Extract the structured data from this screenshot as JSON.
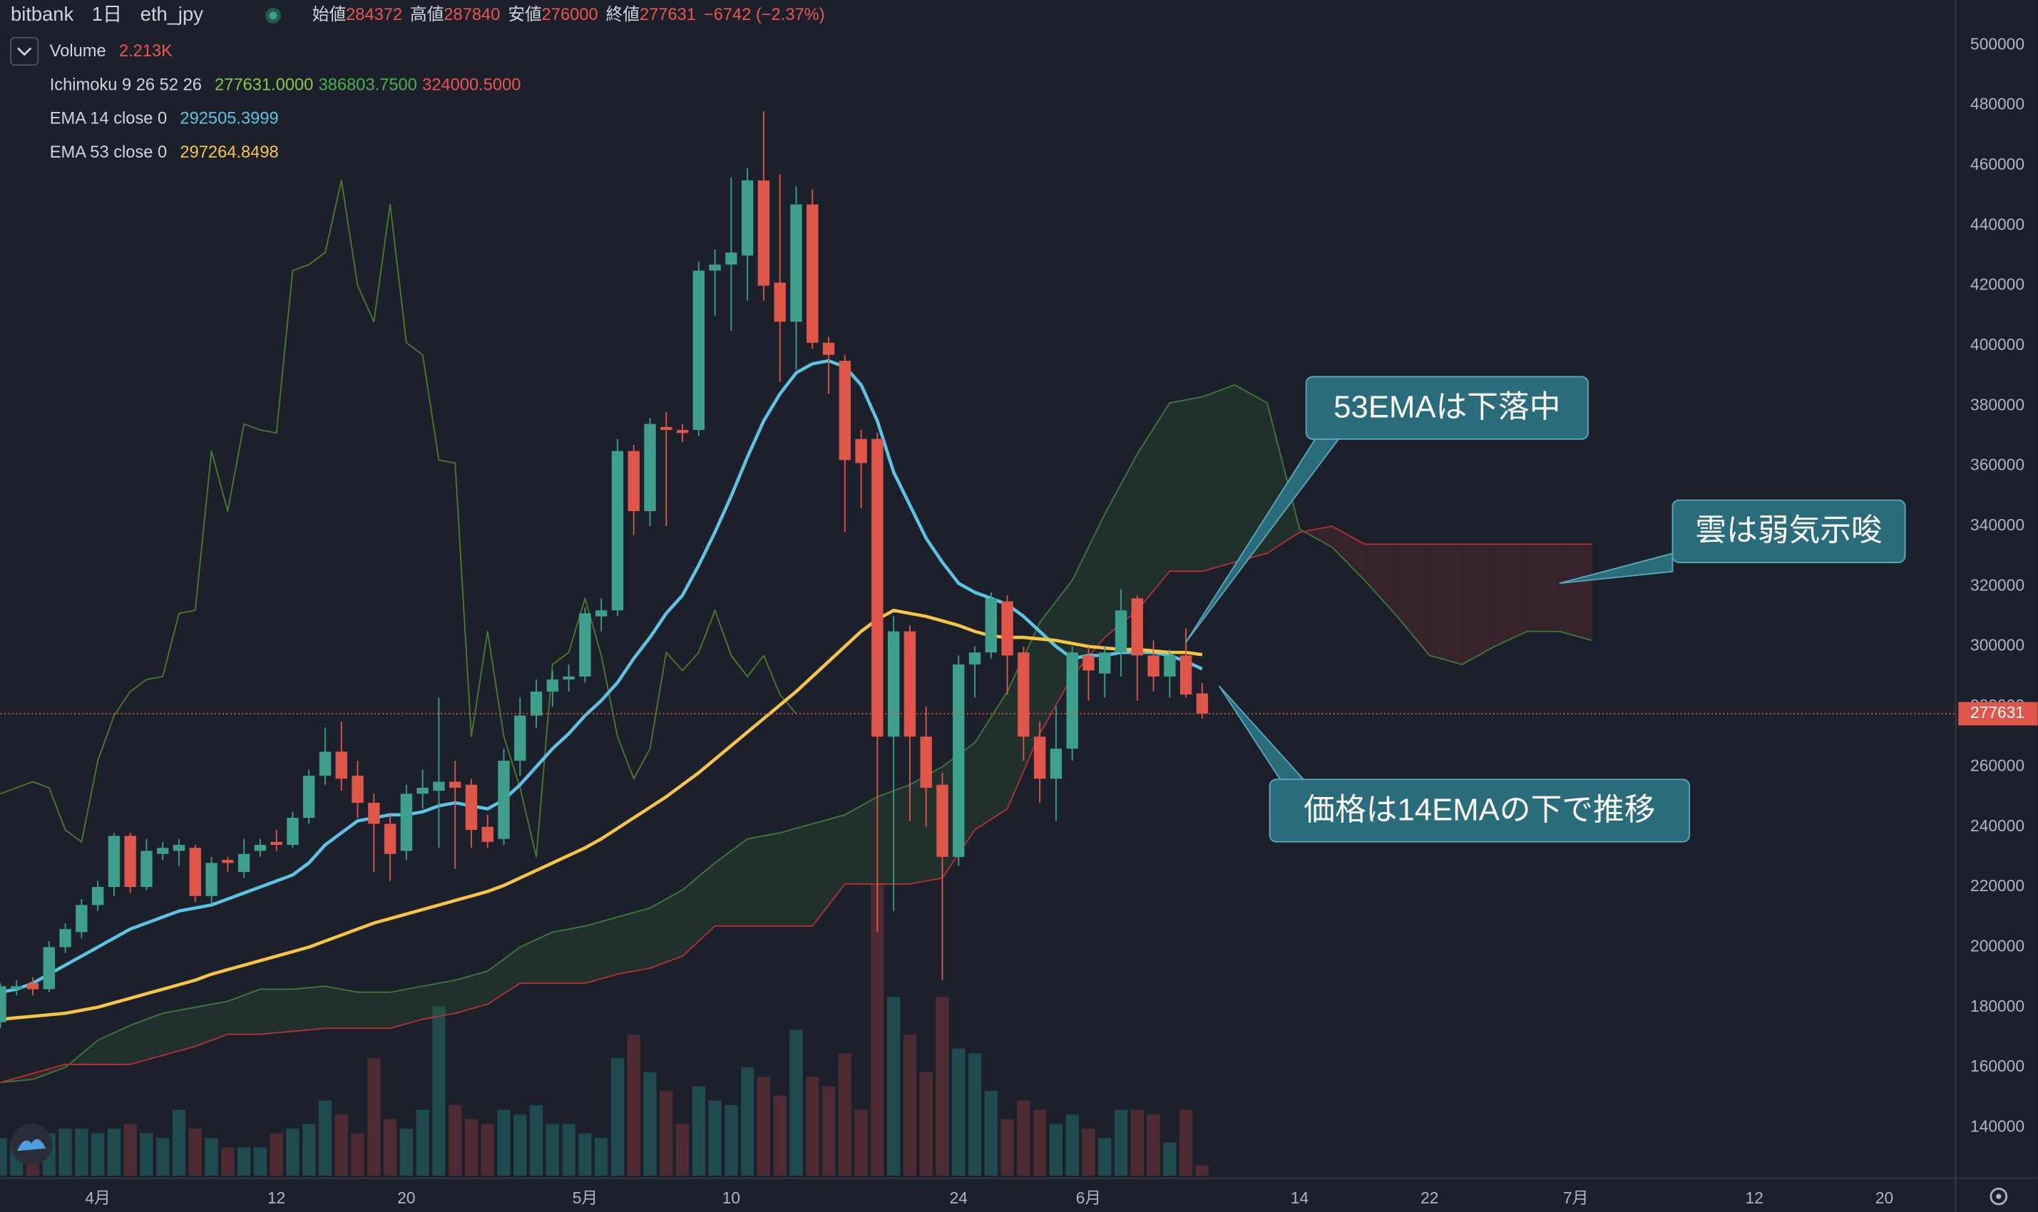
{
  "header": {
    "exchange": "bitbank",
    "interval": "1日",
    "symbol": "eth_jpy",
    "open_label": "始値",
    "high_label": "高値",
    "low_label": "安値",
    "close_label": "終値",
    "change": "−6742 (−2.37%)"
  },
  "annotations": [
    {
      "text": "53EMAは下落中"
    },
    {
      "text": "雲は弱気示唆"
    },
    {
      "text": "価格は14EMAの下で推移"
    }
  ],
  "chart_data": {
    "type": "candlestick",
    "x": [
      -6,
      -5,
      -4,
      -3,
      -2,
      -1,
      0,
      1,
      2,
      3,
      4,
      5,
      6,
      7,
      8,
      9,
      10,
      11,
      12,
      13,
      14,
      15,
      16,
      17,
      18,
      19,
      20,
      21,
      22,
      23,
      24,
      25,
      26,
      27,
      28,
      29,
      30,
      31,
      32,
      33,
      34,
      35,
      36,
      37,
      38,
      39,
      40,
      41,
      42,
      43,
      44,
      45,
      46,
      47,
      48,
      49,
      50,
      51,
      52,
      53,
      54,
      55,
      56,
      57,
      58,
      59,
      60,
      61,
      62,
      63,
      64,
      65,
      66,
      67,
      68
    ],
    "open": [
      175000,
      186000,
      188000,
      186000,
      200000,
      205000,
      214000,
      220000,
      237000,
      220000,
      231000,
      232000,
      233000,
      217000,
      229000,
      225000,
      232000,
      235000,
      234000,
      243000,
      257000,
      265000,
      257000,
      248000,
      241000,
      232000,
      251000,
      252000,
      255000,
      254000,
      240000,
      236000,
      262000,
      277000,
      285000,
      289000,
      290000,
      310000,
      312000,
      365000,
      345000,
      373000,
      372000,
      372000,
      425000,
      427000,
      430000,
      455000,
      421000,
      408000,
      447000,
      401000,
      395000,
      369000,
      369000,
      270000,
      305000,
      270000,
      254000,
      230000,
      294000,
      298000,
      315000,
      298000,
      270000,
      256000,
      266000,
      297000,
      291000,
      298000,
      316000,
      297000,
      290000,
      297000,
      284372
    ],
    "high": [
      188000,
      189000,
      190000,
      202000,
      208000,
      216000,
      222000,
      238000,
      238000,
      236000,
      235000,
      236000,
      234000,
      230000,
      230000,
      236000,
      236000,
      239000,
      245000,
      259000,
      273000,
      275000,
      262000,
      251000,
      244000,
      254000,
      259000,
      283000,
      262000,
      256000,
      244000,
      266000,
      283000,
      289000,
      292000,
      294000,
      313000,
      316000,
      369000,
      367000,
      376000,
      378000,
      374000,
      428000,
      432000,
      456000,
      459000,
      478000,
      457000,
      453000,
      452000,
      403000,
      397000,
      372000,
      371000,
      310000,
      307000,
      280000,
      258000,
      297000,
      300000,
      318000,
      317000,
      300000,
      275000,
      280000,
      300000,
      300000,
      300000,
      319000,
      317000,
      302000,
      299000,
      306000,
      287840
    ],
    "low": [
      173000,
      184000,
      184000,
      185000,
      198000,
      203000,
      212000,
      217000,
      218000,
      219000,
      229000,
      227000,
      215000,
      214000,
      225000,
      223000,
      230000,
      232000,
      233000,
      241000,
      254000,
      252000,
      243000,
      225000,
      222000,
      229000,
      246000,
      233000,
      226000,
      233000,
      233000,
      234000,
      257000,
      273000,
      280000,
      285000,
      288000,
      305000,
      310000,
      337000,
      340000,
      340000,
      368000,
      370000,
      410000,
      405000,
      415000,
      415000,
      388000,
      392000,
      399000,
      384000,
      338000,
      346000,
      205000,
      212000,
      242000,
      240000,
      189000,
      227000,
      283000,
      296000,
      284000,
      262000,
      248000,
      242000,
      262000,
      282000,
      283000,
      290000,
      282000,
      285000,
      283000,
      283000,
      276000
    ],
    "close": [
      187000,
      187000,
      186000,
      200000,
      206000,
      214000,
      220000,
      237000,
      220000,
      232000,
      233000,
      234000,
      217000,
      228000,
      228000,
      231000,
      234000,
      234000,
      243000,
      257000,
      265000,
      256000,
      248000,
      241000,
      231000,
      251000,
      253000,
      255000,
      253000,
      239000,
      235000,
      262000,
      277000,
      285000,
      289000,
      290000,
      311000,
      312000,
      365000,
      345000,
      374000,
      372000,
      371000,
      425000,
      427000,
      431000,
      455000,
      420000,
      408000,
      447000,
      401000,
      397000,
      362000,
      361000,
      270000,
      305000,
      270000,
      253000,
      230000,
      294000,
      298000,
      316000,
      297000,
      270000,
      256000,
      266000,
      298000,
      292000,
      298000,
      312000,
      297000,
      290000,
      297000,
      284000,
      277631
    ],
    "up_color": "#3d9f8c",
    "down_color": "#e0564b",
    "xlim": [
      -6,
      114.4
    ],
    "xticks": [
      {
        "value": 0,
        "label": "4月"
      },
      {
        "value": 11,
        "label": "12"
      },
      {
        "value": 19,
        "label": "20"
      },
      {
        "value": 30,
        "label": "5月"
      },
      {
        "value": 39,
        "label": "10"
      },
      {
        "value": 53,
        "label": "24"
      },
      {
        "value": 61,
        "label": "6月"
      },
      {
        "value": 74,
        "label": "14"
      },
      {
        "value": 82,
        "label": "22"
      },
      {
        "value": 91,
        "label": "7月"
      },
      {
        "value": 102,
        "label": "12"
      },
      {
        "value": 110,
        "label": "20"
      }
    ],
    "ylim": [
      124000,
      515000
    ],
    "yticks": [
      140000,
      160000,
      180000,
      200000,
      220000,
      240000,
      260000,
      280000,
      300000,
      320000,
      340000,
      360000,
      380000,
      400000,
      420000,
      440000,
      460000,
      480000,
      500000
    ],
    "grid": false,
    "volume": {
      "name": "Volume",
      "last_value_label": "2.213K",
      "ylim": [
        0,
        250000
      ],
      "up_color": "#1f4a50",
      "down_color": "#4e2a33",
      "values": [
        8000,
        7000,
        6000,
        9000,
        10000,
        10000,
        9000,
        10000,
        11000,
        9000,
        8000,
        14000,
        10000,
        8000,
        6000,
        6000,
        6000,
        9000,
        10000,
        11000,
        16000,
        13000,
        9000,
        25000,
        12000,
        10000,
        14000,
        36000,
        15000,
        12000,
        11000,
        14000,
        13000,
        15000,
        11000,
        11000,
        9000,
        8000,
        25000,
        30000,
        22000,
        18000,
        11000,
        19000,
        16000,
        15000,
        23000,
        21000,
        17000,
        31000,
        21000,
        19000,
        26000,
        14000,
        62000,
        38000,
        30000,
        22000,
        38000,
        27000,
        26000,
        18000,
        12000,
        16000,
        14000,
        11000,
        13000,
        10000,
        8000,
        14000,
        14000,
        13000,
        7000,
        14000,
        2213
      ]
    },
    "series": [
      {
        "name": "EMA 14 close 0",
        "color": "#5cc3e3",
        "values": [
          185000,
          186000,
          188000,
          191000,
          194000,
          197000,
          200000,
          203000,
          206000,
          208000,
          210000,
          212000,
          213000,
          214000,
          216000,
          218000,
          220000,
          222000,
          224000,
          228000,
          234000,
          238000,
          242000,
          243000,
          244000,
          244000,
          245000,
          247000,
          248000,
          247000,
          246000,
          249000,
          254000,
          260000,
          266000,
          271000,
          277000,
          282000,
          288000,
          296000,
          303000,
          311000,
          317000,
          327000,
          338000,
          350000,
          363000,
          375000,
          384000,
          391000,
          394000,
          395000,
          393000,
          387000,
          375000,
          358000,
          347000,
          336000,
          328000,
          321000,
          318000,
          316000,
          314000,
          310000,
          305000,
          300000,
          296000,
          297000,
          297000,
          298000,
          298000,
          298000,
          297000,
          295000,
          292505.3999
        ]
      },
      {
        "name": "EMA 53 close 0",
        "color": "#f6c544",
        "values": [
          176000,
          176500,
          177000,
          177500,
          178000,
          179000,
          180000,
          181500,
          183000,
          184500,
          186000,
          187500,
          189000,
          191000,
          192500,
          194000,
          195500,
          197000,
          198500,
          200000,
          202000,
          204000,
          206000,
          208000,
          209500,
          211000,
          212500,
          214000,
          215500,
          217000,
          218500,
          220500,
          223000,
          225500,
          228000,
          230500,
          233000,
          236000,
          239500,
          243000,
          246500,
          250000,
          254000,
          258000,
          262500,
          267000,
          271500,
          276000,
          280500,
          285000,
          290000,
          295000,
          300000,
          305000,
          309000,
          312000,
          311000,
          310000,
          308500,
          307000,
          305000,
          303500,
          303000,
          303000,
          302500,
          302000,
          301000,
          300000,
          299500,
          299000,
          299000,
          298500,
          298000,
          298000,
          297264.8498
        ]
      }
    ],
    "ichimoku": {
      "name": "Ichimoku 9 26 52 26",
      "legend_values": [
        "277631.0000",
        "386803.7500",
        "324000.5000"
      ],
      "x": [
        -6,
        -4,
        -2,
        0,
        2,
        4,
        6,
        8,
        10,
        12,
        14,
        16,
        18,
        20,
        22,
        24,
        26,
        28,
        30,
        32,
        34,
        36,
        38,
        40,
        42,
        44,
        46,
        48,
        50,
        52,
        54,
        56,
        58,
        60,
        62,
        64,
        66,
        68,
        70,
        72,
        74,
        76,
        78,
        80,
        82,
        84,
        86,
        88,
        90,
        92
      ],
      "span_a": {
        "color": "#3f7a3a",
        "values": [
          155000,
          156000,
          160000,
          169000,
          174000,
          178000,
          180000,
          182000,
          186000,
          186000,
          187000,
          185000,
          185000,
          187000,
          189000,
          192000,
          200000,
          205000,
          207000,
          210000,
          213000,
          219000,
          228000,
          236000,
          238000,
          241000,
          244000,
          250000,
          254000,
          260000,
          268000,
          285000,
          308000,
          322000,
          344000,
          364000,
          381000,
          383000,
          387000,
          381000,
          339000,
          333000,
          322000,
          310000,
          297000,
          294000,
          300000,
          305000,
          305000,
          302000
        ]
      },
      "span_b": {
        "color": "#b53232",
        "values": [
          155000,
          158000,
          161000,
          161000,
          161000,
          164000,
          167000,
          171000,
          171000,
          172000,
          173000,
          173000,
          173000,
          176000,
          178000,
          181000,
          188000,
          188000,
          188000,
          191000,
          193000,
          197000,
          207000,
          207000,
          207000,
          207000,
          221000,
          221000,
          221000,
          223000,
          239000,
          246000,
          271000,
          290000,
          303000,
          312000,
          325000,
          325000,
          328000,
          331000,
          338000,
          340000,
          334000,
          334000,
          334000,
          334000,
          334000,
          334000,
          334000,
          334000
        ]
      },
      "lagging": {
        "color": "#4d7a2c",
        "x": [
          -6,
          -5,
          -4,
          -3,
          -2,
          -1,
          0,
          1,
          2,
          3,
          4,
          5,
          6,
          7,
          8,
          9,
          10,
          11,
          12,
          13,
          14,
          15,
          16,
          17,
          18,
          19,
          20,
          21,
          22,
          23,
          24,
          25,
          26,
          27,
          28,
          29,
          30,
          31,
          32,
          33,
          34,
          35,
          36,
          37,
          38,
          39,
          40,
          41,
          42,
          43
        ],
        "values": [
          251000,
          253000,
          255000,
          253000,
          239000,
          235000,
          262000,
          277000,
          285000,
          289000,
          290000,
          311000,
          312000,
          365000,
          345000,
          374000,
          372000,
          371000,
          425000,
          427000,
          431000,
          455000,
          420000,
          408000,
          447000,
          401000,
          397000,
          362000,
          361000,
          270000,
          305000,
          270000,
          253000,
          230000,
          294000,
          298000,
          316000,
          297000,
          270000,
          256000,
          266000,
          298000,
          292000,
          298000,
          312000,
          297000,
          290000,
          297000,
          284000,
          277631
        ]
      }
    }
  }
}
